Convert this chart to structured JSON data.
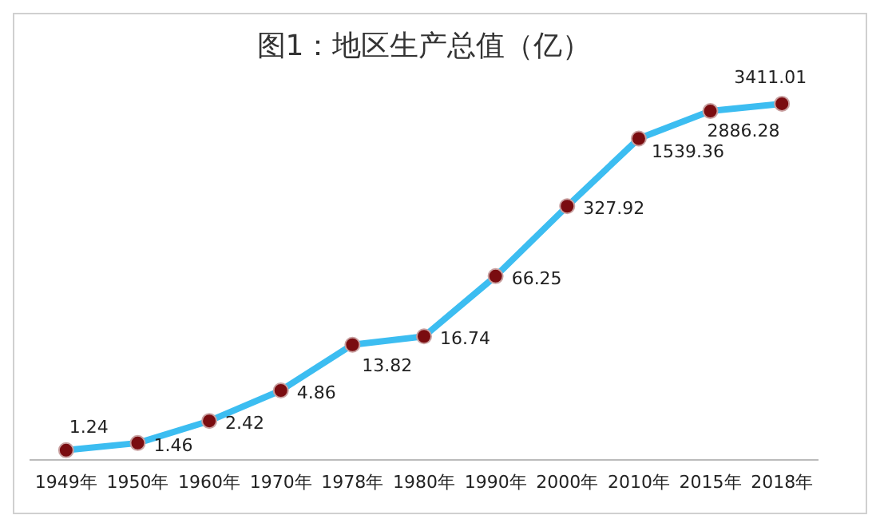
{
  "chart_data": {
    "type": "line",
    "title": "图1：地区生产总值（亿）",
    "categories": [
      "1949年",
      "1950年",
      "1960年",
      "1970年",
      "1978年",
      "1980年",
      "1990年",
      "2000年",
      "2010年",
      "2015年",
      "2018年"
    ],
    "series": [
      {
        "color": "#3cbdf1",
        "values": [
          1.24,
          1.46,
          2.42,
          4.86,
          13.82,
          16.74,
          66.25,
          327.92,
          1539.36,
          2886.28,
          3411.01
        ]
      }
    ],
    "log": true,
    "data_labels": true,
    "marker": "circle",
    "grid": false,
    "legend": false
  }
}
